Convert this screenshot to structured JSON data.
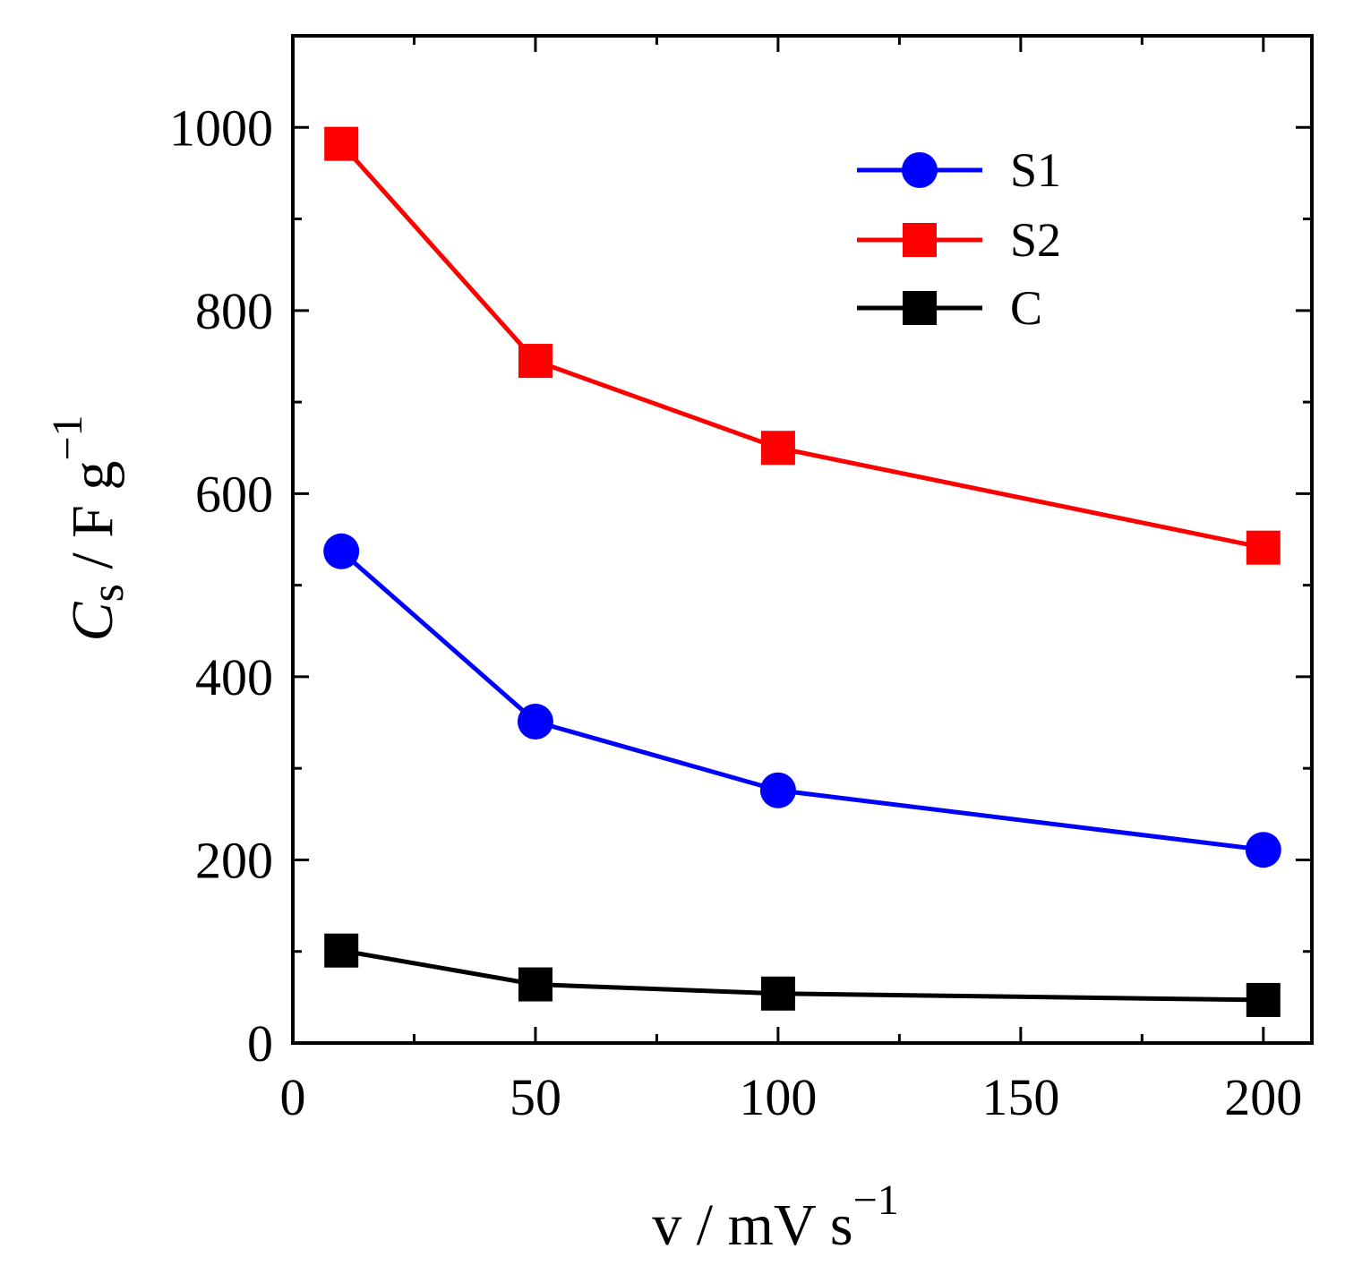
{
  "chart_data": {
    "type": "line",
    "title": "",
    "xlabel": {
      "base": "v / mV s",
      "sup": "−1"
    },
    "ylabel": {
      "italic": "C",
      "sub": "s",
      "rest": " / F g",
      "sup": "−1"
    },
    "xlim": [
      0,
      210
    ],
    "ylim": [
      0,
      1100
    ],
    "x_ticks_major": [
      0,
      50,
      100,
      150,
      200
    ],
    "x_ticks_minor": [
      25,
      75,
      125,
      175
    ],
    "y_ticks_major": [
      0,
      200,
      400,
      600,
      800,
      1000
    ],
    "y_ticks_minor": [
      100,
      300,
      500,
      700,
      900
    ],
    "grid": false,
    "legend_position": "top-right",
    "series": [
      {
        "name": "S1",
        "color": "#0000ff",
        "marker": "circle",
        "x": [
          10,
          50,
          100,
          200
        ],
        "y": [
          537,
          351,
          276,
          211
        ]
      },
      {
        "name": "S2",
        "color": "#ff0000",
        "marker": "square",
        "x": [
          10,
          50,
          100,
          200
        ],
        "y": [
          982,
          745,
          650,
          541
        ]
      },
      {
        "name": "C",
        "color": "#000000",
        "marker": "square",
        "x": [
          10,
          50,
          100,
          200
        ],
        "y": [
          101,
          64,
          54,
          47
        ]
      }
    ]
  }
}
